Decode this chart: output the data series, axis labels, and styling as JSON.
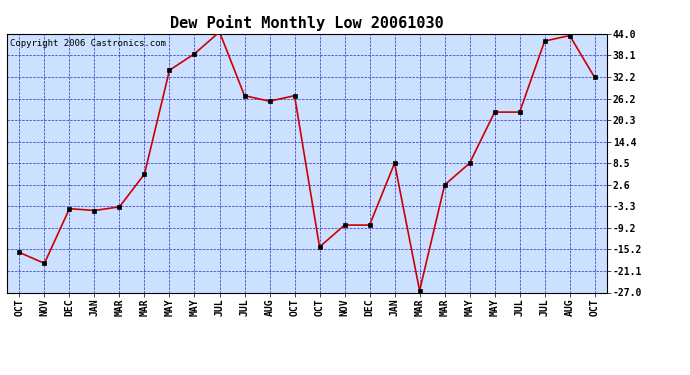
{
  "title": "Dew Point Monthly Low 20061030",
  "copyright": "Copyright 2006 Castronics.com",
  "x_labels": [
    "OCT",
    "NOV",
    "DEC",
    "JAN",
    "MAR",
    "MAR",
    "MAY",
    "MAY",
    "JUL",
    "JUL",
    "AUG",
    "OCT",
    "OCT",
    "NOV",
    "DEC",
    "JAN",
    "MAR",
    "MAR",
    "MAY",
    "MAY",
    "JUL",
    "JUL",
    "AUG",
    "OCT"
  ],
  "y_values": [
    -16.0,
    -19.0,
    -4.0,
    -4.5,
    -3.5,
    5.5,
    34.0,
    38.5,
    44.5,
    27.0,
    25.5,
    27.0,
    -14.5,
    -8.5,
    -8.5,
    8.5,
    -26.5,
    2.5,
    8.5,
    22.5,
    22.5,
    42.0,
    43.5,
    32.0
  ],
  "yticks": [
    44.0,
    38.1,
    32.2,
    26.2,
    20.3,
    14.4,
    8.5,
    2.6,
    -3.3,
    -9.2,
    -15.2,
    -21.1,
    -27.0
  ],
  "ylim": [
    -27.0,
    44.0
  ],
  "line_color": "#cc0000",
  "marker_color": "#000000",
  "bg_color": "#cce0ff",
  "grid_major_color": "#0000bb",
  "grid_minor_color": "#6688cc",
  "title_fontsize": 11,
  "tick_fontsize": 7,
  "copyright_fontsize": 6.5,
  "marker_size": 3
}
